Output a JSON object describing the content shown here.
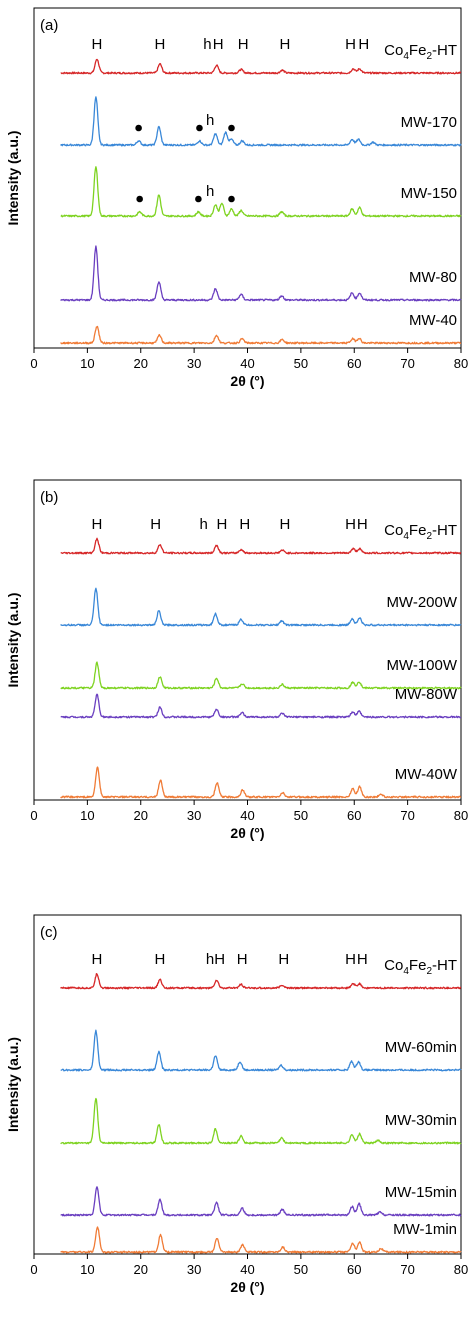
{
  "chart_data": [
    {
      "type": "line",
      "panel_label": "(a)",
      "xlabel": "2θ (°)",
      "ylabel": "Intensity (a.u.)",
      "xlim": [
        0,
        80
      ],
      "xticks": [
        "0",
        "10",
        "20",
        "30",
        "40",
        "50",
        "60",
        "70",
        "80"
      ],
      "series": [
        {
          "name": "Co4Fe2-HT",
          "color": "#d62728",
          "peaks": [
            [
              11.8,
              1.0
            ],
            [
              23.6,
              0.65
            ],
            [
              34.2,
              0.55
            ],
            [
              38.8,
              0.25
            ],
            [
              46.5,
              0.2
            ],
            [
              59.8,
              0.3
            ],
            [
              61.0,
              0.3
            ]
          ]
        },
        {
          "name": "MW-170",
          "color": "#3a88d8",
          "peaks": [
            [
              11.6,
              3.4
            ],
            [
              19.6,
              0.3
            ],
            [
              23.4,
              1.3
            ],
            [
              31.0,
              0.3
            ],
            [
              34.0,
              0.8
            ],
            [
              35.9,
              0.9
            ],
            [
              37.0,
              0.4
            ],
            [
              39.0,
              0.3
            ],
            [
              59.6,
              0.4
            ],
            [
              60.8,
              0.4
            ],
            [
              63.5,
              0.2
            ]
          ]
        },
        {
          "name": "MW-150",
          "color": "#7ed321",
          "peaks": [
            [
              11.6,
              3.5
            ],
            [
              19.8,
              0.3
            ],
            [
              23.4,
              1.5
            ],
            [
              30.8,
              0.3
            ],
            [
              34.0,
              0.8
            ],
            [
              35.2,
              0.9
            ],
            [
              37.0,
              0.5
            ],
            [
              38.8,
              0.4
            ],
            [
              46.4,
              0.3
            ],
            [
              59.6,
              0.5
            ],
            [
              61.0,
              0.6
            ]
          ]
        },
        {
          "name": "MW-80",
          "color": "#6a3fc0",
          "peaks": [
            [
              11.6,
              3.8
            ],
            [
              23.4,
              1.3
            ],
            [
              34.0,
              0.8
            ],
            [
              38.8,
              0.4
            ],
            [
              46.4,
              0.3
            ],
            [
              59.6,
              0.5
            ],
            [
              61.0,
              0.5
            ]
          ]
        },
        {
          "name": "MW-40",
          "color": "#f07b36",
          "peaks": [
            [
              11.8,
              1.2
            ],
            [
              23.5,
              0.55
            ],
            [
              34.2,
              0.55
            ],
            [
              39.0,
              0.3
            ],
            [
              46.5,
              0.25
            ],
            [
              59.7,
              0.3
            ],
            [
              60.9,
              0.35
            ]
          ]
        }
      ],
      "annotations": [
        {
          "series": 0,
          "text": "H",
          "x": 11.8
        },
        {
          "series": 0,
          "text": "H",
          "x": 23.6
        },
        {
          "series": 0,
          "text": "h",
          "x": 32.5
        },
        {
          "series": 0,
          "text": "H",
          "x": 34.5
        },
        {
          "series": 0,
          "text": "H",
          "x": 39.2
        },
        {
          "series": 0,
          "text": "H",
          "x": 47.0
        },
        {
          "series": 0,
          "text": "H",
          "x": 59.3
        },
        {
          "series": 0,
          "text": "H",
          "x": 61.8
        },
        {
          "series": 1,
          "text": "h",
          "x": 33.0
        },
        {
          "series": 2,
          "text": "h",
          "x": 33.0
        }
      ],
      "markers": [
        {
          "series": 1,
          "x": 19.6
        },
        {
          "series": 1,
          "x": 31.0
        },
        {
          "series": 1,
          "x": 37.0
        },
        {
          "series": 2,
          "x": 19.8
        },
        {
          "series": 2,
          "x": 30.8
        },
        {
          "series": 2,
          "x": 37.0
        }
      ]
    },
    {
      "type": "line",
      "panel_label": "(b)",
      "xlabel": "2θ (°)",
      "ylabel": "Intensity (a.u.)",
      "xlim": [
        0,
        80
      ],
      "xticks": [
        "0",
        "10",
        "20",
        "30",
        "40",
        "50",
        "60",
        "70",
        "80"
      ],
      "series": [
        {
          "name": "Co4Fe2-HT",
          "color": "#d62728",
          "peaks": [
            [
              11.8,
              1.0
            ],
            [
              23.6,
              0.6
            ],
            [
              34.2,
              0.55
            ],
            [
              38.8,
              0.25
            ],
            [
              46.5,
              0.2
            ],
            [
              59.8,
              0.3
            ],
            [
              61.0,
              0.3
            ]
          ]
        },
        {
          "name": "MW-200W",
          "color": "#3a88d8",
          "peaks": [
            [
              11.6,
              2.6
            ],
            [
              23.4,
              1.0
            ],
            [
              34.0,
              0.8
            ],
            [
              38.8,
              0.4
            ],
            [
              46.4,
              0.3
            ],
            [
              59.6,
              0.45
            ],
            [
              61.0,
              0.5
            ]
          ]
        },
        {
          "name": "MW-100W",
          "color": "#7ed321",
          "peaks": [
            [
              11.8,
              1.8
            ],
            [
              23.6,
              0.8
            ],
            [
              34.2,
              0.7
            ],
            [
              39.0,
              0.3
            ],
            [
              46.5,
              0.25
            ],
            [
              59.7,
              0.4
            ],
            [
              60.9,
              0.45
            ]
          ]
        },
        {
          "name": "MW-80W",
          "color": "#6a3fc0",
          "peaks": [
            [
              11.8,
              1.6
            ],
            [
              23.6,
              0.7
            ],
            [
              34.2,
              0.55
            ],
            [
              39.0,
              0.3
            ],
            [
              46.5,
              0.25
            ],
            [
              59.7,
              0.35
            ],
            [
              60.9,
              0.4
            ]
          ]
        },
        {
          "name": "MW-40W",
          "color": "#f07b36",
          "peaks": [
            [
              11.9,
              2.1
            ],
            [
              23.7,
              1.2
            ],
            [
              34.3,
              1.0
            ],
            [
              39.1,
              0.5
            ],
            [
              46.6,
              0.3
            ],
            [
              59.7,
              0.6
            ],
            [
              61.0,
              0.75
            ],
            [
              65.0,
              0.2
            ]
          ]
        }
      ],
      "annotations": [
        {
          "series": 0,
          "text": "H",
          "x": 11.8
        },
        {
          "series": 0,
          "text": "H",
          "x": 22.8
        },
        {
          "series": 0,
          "text": "h",
          "x": 31.8
        },
        {
          "series": 0,
          "text": "H",
          "x": 35.2
        },
        {
          "series": 0,
          "text": "H",
          "x": 39.5
        },
        {
          "series": 0,
          "text": "H",
          "x": 47.0
        },
        {
          "series": 0,
          "text": "H",
          "x": 59.3
        },
        {
          "series": 0,
          "text": "H",
          "x": 61.5
        }
      ],
      "markers": []
    },
    {
      "type": "line",
      "panel_label": "(c)",
      "xlabel": "2θ (°)",
      "ylabel": "Intensity (a.u.)",
      "xlim": [
        0,
        80
      ],
      "xticks": [
        "0",
        "10",
        "20",
        "30",
        "40",
        "50",
        "60",
        "70",
        "80"
      ],
      "series": [
        {
          "name": "Co4Fe2-HT",
          "color": "#d62728",
          "peaks": [
            [
              11.8,
              1.0
            ],
            [
              23.6,
              0.6
            ],
            [
              34.2,
              0.55
            ],
            [
              38.8,
              0.25
            ],
            [
              46.5,
              0.2
            ],
            [
              59.8,
              0.3
            ],
            [
              61.0,
              0.3
            ]
          ]
        },
        {
          "name": "MW-60min",
          "color": "#3a88d8",
          "peaks": [
            [
              11.6,
              2.8
            ],
            [
              23.4,
              1.3
            ],
            [
              34.0,
              1.0
            ],
            [
              38.6,
              0.6
            ],
            [
              46.3,
              0.35
            ],
            [
              59.5,
              0.6
            ],
            [
              60.8,
              0.6
            ]
          ]
        },
        {
          "name": "MW-30min",
          "color": "#7ed321",
          "peaks": [
            [
              11.6,
              3.2
            ],
            [
              23.4,
              1.3
            ],
            [
              34.0,
              1.0
            ],
            [
              38.8,
              0.5
            ],
            [
              46.4,
              0.35
            ],
            [
              59.6,
              0.6
            ],
            [
              61.0,
              0.65
            ],
            [
              64.5,
              0.2
            ]
          ]
        },
        {
          "name": "MW-15min",
          "color": "#6a3fc0",
          "peaks": [
            [
              11.8,
              2.0
            ],
            [
              23.6,
              1.1
            ],
            [
              34.2,
              0.9
            ],
            [
              39.0,
              0.5
            ],
            [
              46.5,
              0.4
            ],
            [
              59.6,
              0.6
            ],
            [
              60.9,
              0.8
            ],
            [
              64.8,
              0.2
            ]
          ]
        },
        {
          "name": "MW-1min",
          "color": "#f07b36",
          "peaks": [
            [
              11.9,
              1.8
            ],
            [
              23.7,
              1.2
            ],
            [
              34.3,
              1.0
            ],
            [
              39.1,
              0.5
            ],
            [
              46.6,
              0.35
            ],
            [
              59.7,
              0.6
            ],
            [
              61.0,
              0.7
            ],
            [
              65.0,
              0.25
            ]
          ]
        }
      ],
      "annotations": [
        {
          "series": 0,
          "text": "H",
          "x": 11.8
        },
        {
          "series": 0,
          "text": "H",
          "x": 23.6
        },
        {
          "series": 0,
          "text": "hH",
          "x": 34.0
        },
        {
          "series": 0,
          "text": "H",
          "x": 39.0
        },
        {
          "series": 0,
          "text": "H",
          "x": 46.8
        },
        {
          "series": 0,
          "text": "H",
          "x": 59.3
        },
        {
          "series": 0,
          "text": "H",
          "x": 61.5
        }
      ],
      "markers": []
    }
  ]
}
